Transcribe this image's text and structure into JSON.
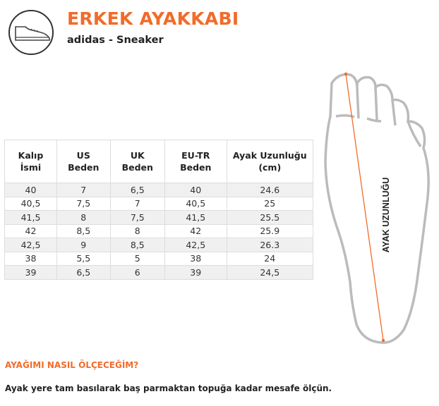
{
  "header": {
    "title": "ERKEK AYAKKABI",
    "subtitle": "adidas - Sneaker",
    "icon": "sneaker-icon"
  },
  "colors": {
    "accent": "#f26b2a"
  },
  "table": {
    "headers": [
      [
        "Kalıp",
        "İsmi"
      ],
      [
        "US",
        "Beden"
      ],
      [
        "UK",
        "Beden"
      ],
      [
        "EU-TR",
        "Beden"
      ],
      [
        "Ayak Uzunluğu",
        "(cm)"
      ]
    ],
    "rows": [
      [
        "40",
        "7",
        "6,5",
        "40",
        "24.6"
      ],
      [
        "40,5",
        "7,5",
        "7",
        "40,5",
        "25"
      ],
      [
        "41,5",
        "8",
        "7,5",
        "41,5",
        "25.5"
      ],
      [
        "42",
        "8,5",
        "8",
        "42",
        "25.9"
      ],
      [
        "42,5",
        "9",
        "8,5",
        "42,5",
        "26.3"
      ],
      [
        "38",
        "5,5",
        "5",
        "38",
        "24"
      ],
      [
        "39",
        "6,5",
        "6",
        "39",
        "24,5"
      ]
    ]
  },
  "diagram": {
    "label": "AYAK UZUNLUĞU"
  },
  "footer": {
    "heading": "AYAĞIMI NASIL ÖLÇECEĞİM?",
    "text": "Ayak yere tam basılarak baş parmaktan topuğa kadar mesafe ölçün."
  }
}
